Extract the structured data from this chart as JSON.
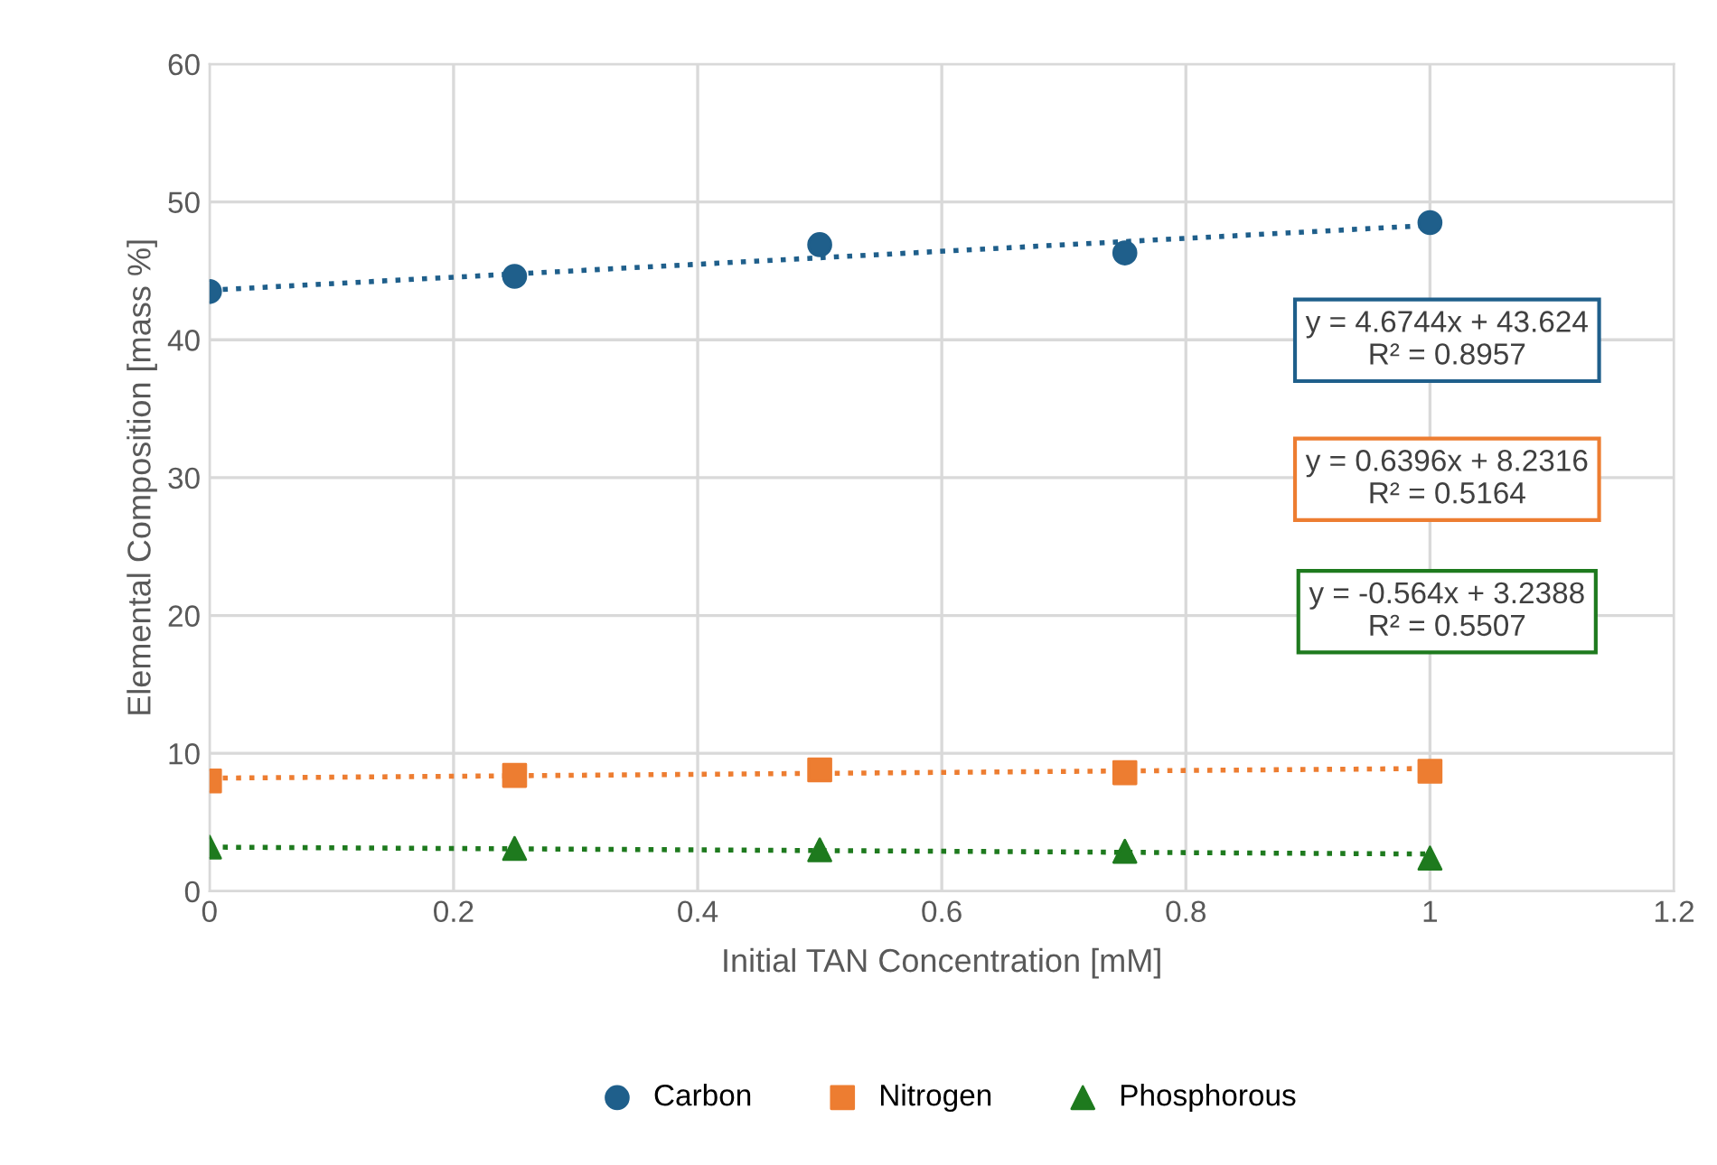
{
  "chart_data": {
    "type": "scatter",
    "xlabel": "Initial TAN Concentration [mM]",
    "ylabel": "Elemental Composition [mass %]",
    "xlim": [
      0,
      1.2
    ],
    "xticks": [
      0,
      0.2,
      0.4,
      0.6,
      0.8,
      1,
      1.2
    ],
    "ylim": [
      0,
      60
    ],
    "yticks": [
      0,
      10,
      20,
      30,
      40,
      50,
      60
    ],
    "grid": true,
    "legend": "bottom",
    "series": [
      {
        "name": "Carbon",
        "color": "#1f5f8b",
        "marker": "circle",
        "x": [
          0,
          0.25,
          0.5,
          0.75,
          1
        ],
        "values": [
          43.5,
          44.6,
          46.9,
          46.3,
          48.5
        ]
      },
      {
        "name": "Nitrogen",
        "color": "#ed7d31",
        "marker": "square",
        "x": [
          0,
          0.25,
          0.5,
          0.75,
          1
        ],
        "values": [
          8.0,
          8.4,
          8.8,
          8.6,
          8.7
        ]
      },
      {
        "name": "Phosphorous",
        "color": "#1e7a1e",
        "marker": "triangle",
        "x": [
          0,
          0.25,
          0.5,
          0.75,
          1
        ],
        "values": [
          3.2,
          3.1,
          3.0,
          2.9,
          2.4
        ]
      },
      {
        "type": "line",
        "color": "#1f5f8b",
        "marker": "none",
        "line_style": "dotted",
        "x": [
          0,
          1
        ],
        "values": [
          43.6,
          48.3
        ]
      },
      {
        "type": "line",
        "color": "#ed7d31",
        "marker": "none",
        "line_style": "dotted",
        "x": [
          0,
          1
        ],
        "values": [
          8.2,
          8.9
        ]
      },
      {
        "type": "line",
        "color": "#1e7a1e",
        "marker": "none",
        "line_style": "dotted",
        "x": [
          0,
          1
        ],
        "values": [
          3.2,
          2.7
        ]
      }
    ],
    "annotations": [
      "y = 4.6744x + 43.624\nR² = 0.8957",
      "y = 0.6396x + 8.2316\nR² = 0.5164",
      "y = -0.564x + 3.2388\nR² = 0.5507"
    ]
  }
}
